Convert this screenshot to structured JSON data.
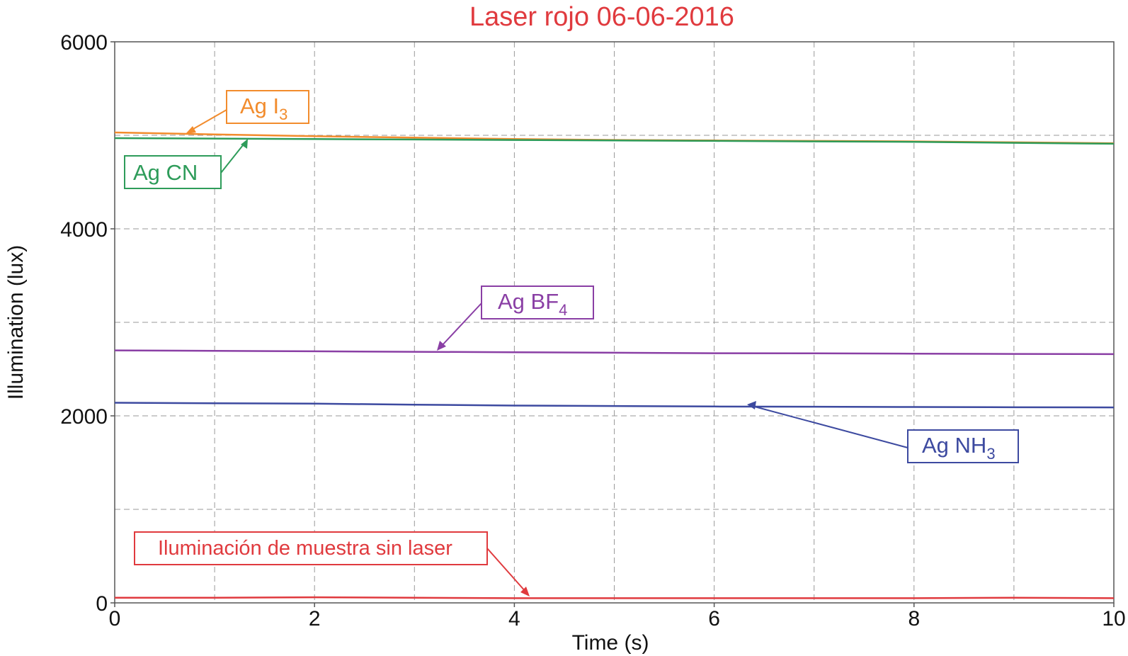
{
  "chart_data": {
    "type": "line",
    "title": "Laser rojo 06-06-2016",
    "xlabel": "Time (s)",
    "ylabel": "Illumination (lux)",
    "xlim": [
      0,
      10
    ],
    "ylim": [
      0,
      6000
    ],
    "x_ticks": [
      "0",
      "2",
      "4",
      "6",
      "8",
      "10"
    ],
    "y_ticks": [
      "0",
      "2000",
      "4000",
      "6000"
    ],
    "grid": true,
    "x": [
      0,
      1,
      2,
      3,
      4,
      5,
      6,
      7,
      8,
      9,
      10
    ],
    "series": [
      {
        "name": "Ag I3",
        "color": "#f28c2d",
        "values": [
          5030,
          5010,
          4990,
          4975,
          4960,
          4950,
          4945,
          4940,
          4935,
          4925,
          4915
        ]
      },
      {
        "name": "Ag CN",
        "color": "#2e9c5a",
        "values": [
          4970,
          4965,
          4960,
          4955,
          4950,
          4945,
          4940,
          4935,
          4930,
          4920,
          4910
        ]
      },
      {
        "name": "Ag BF4",
        "color": "#8a3fa5",
        "values": [
          2700,
          2695,
          2690,
          2685,
          2680,
          2675,
          2670,
          2668,
          2665,
          2662,
          2660
        ]
      },
      {
        "name": "Ag NH3",
        "color": "#3d4aa0",
        "values": [
          2140,
          2135,
          2130,
          2120,
          2110,
          2105,
          2100,
          2098,
          2095,
          2092,
          2090
        ]
      },
      {
        "name": "Iluminación de muestra sin laser",
        "color": "#e03a3e",
        "values": [
          55,
          55,
          60,
          55,
          50,
          50,
          50,
          50,
          50,
          55,
          50
        ]
      }
    ],
    "annotations": [
      {
        "label": "Ag I",
        "subscript": "3",
        "series": "Ag I3",
        "color": "#f28c2d"
      },
      {
        "label": "Ag CN",
        "subscript": "",
        "series": "Ag CN",
        "color": "#2e9c5a"
      },
      {
        "label": "Ag BF",
        "subscript": "4",
        "series": "Ag BF4",
        "color": "#8a3fa5"
      },
      {
        "label": "Ag NH",
        "subscript": "3",
        "series": "Ag NH3",
        "color": "#3d4aa0"
      },
      {
        "label": "Iluminación de muestra sin laser",
        "subscript": "",
        "series": "Iluminación de muestra sin laser",
        "color": "#e03a3e"
      }
    ]
  }
}
